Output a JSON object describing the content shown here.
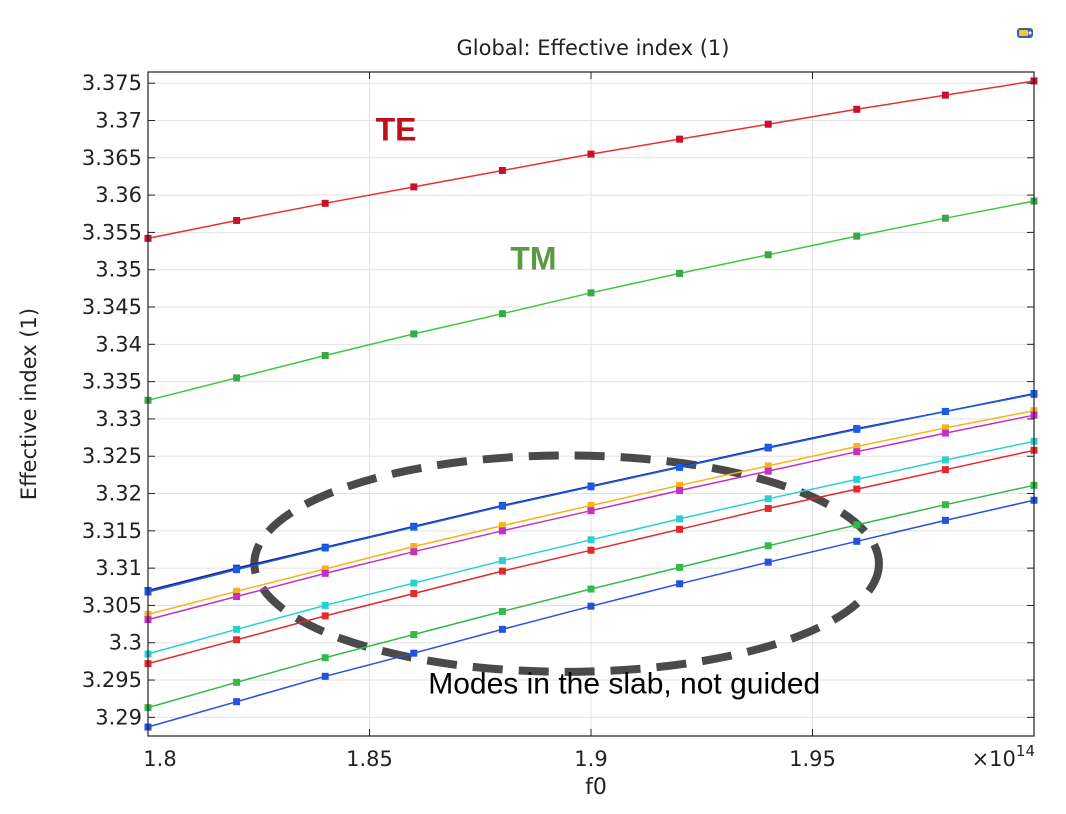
{
  "chart_data": {
    "type": "line",
    "title": "Global: Effective index (1)",
    "xlabel": "f0",
    "ylabel": "Effective index (1)",
    "x_multiplier_label": "×10",
    "x_multiplier_exp": "14",
    "xlim": [
      1.8,
      2.0
    ],
    "ylim": [
      3.2875,
      3.3765
    ],
    "x_ticks": [
      "1.8",
      "1.85",
      "1.9",
      "1.95"
    ],
    "y_ticks": [
      "3.29",
      "3.295",
      "3.3",
      "3.305",
      "3.31",
      "3.315",
      "3.32",
      "3.325",
      "3.33",
      "3.335",
      "3.34",
      "3.345",
      "3.35",
      "3.355",
      "3.36",
      "3.365",
      "3.37",
      "3.375"
    ],
    "grid": true,
    "x": [
      1.8,
      1.82,
      1.84,
      1.86,
      1.88,
      1.9,
      1.92,
      1.94,
      1.96,
      1.98,
      2.0
    ],
    "series": [
      {
        "color": "#e8312d",
        "marker_color": "#c8102e",
        "values": [
          3.3542,
          3.3566,
          3.3589,
          3.3611,
          3.3633,
          3.3655,
          3.3675,
          3.3695,
          3.3715,
          3.3734,
          3.3753
        ]
      },
      {
        "color": "#3cc93c",
        "marker_color": "#3aa84a",
        "values": [
          3.3325,
          3.3355,
          3.3385,
          3.3414,
          3.3441,
          3.3469,
          3.3495,
          3.352,
          3.3545,
          3.3569,
          3.3592
        ]
      },
      {
        "color": "#1c1c8c",
        "marker_color": "#1c3ccf",
        "values": [
          3.307,
          3.31,
          3.3128,
          3.3156,
          3.3184,
          3.321,
          3.3236,
          3.3262,
          3.3287,
          3.331,
          3.3334
        ]
      },
      {
        "color": "#1a5ce6",
        "marker_color": "#1a5ce6",
        "values": [
          3.3068,
          3.3098,
          3.3127,
          3.3155,
          3.3183,
          3.3209,
          3.3235,
          3.3261,
          3.3286,
          3.331,
          3.3333
        ]
      },
      {
        "color": "#f8b31c",
        "marker_color": "#f8b31c",
        "values": [
          3.3038,
          3.3069,
          3.3099,
          3.3129,
          3.3157,
          3.3184,
          3.3211,
          3.3237,
          3.3263,
          3.3288,
          3.3311
        ]
      },
      {
        "color": "#c430c4",
        "marker_color": "#c430c4",
        "values": [
          3.3031,
          3.3062,
          3.3093,
          3.3122,
          3.315,
          3.3177,
          3.3204,
          3.323,
          3.3256,
          3.3281,
          3.3305
        ]
      },
      {
        "color": "#2ccfcf",
        "marker_color": "#2ccfcf",
        "values": [
          3.2985,
          3.3018,
          3.305,
          3.308,
          3.311,
          3.3138,
          3.3166,
          3.3193,
          3.3219,
          3.3245,
          3.327
        ]
      },
      {
        "color": "#e12a2a",
        "marker_color": "#e12a2a",
        "values": [
          3.2972,
          3.3004,
          3.3036,
          3.3066,
          3.3096,
          3.3124,
          3.3152,
          3.318,
          3.3206,
          3.3232,
          3.3258
        ]
      },
      {
        "color": "#33b84c",
        "marker_color": "#33b84c",
        "values": [
          3.2913,
          3.2947,
          3.298,
          3.3011,
          3.3042,
          3.3072,
          3.3101,
          3.313,
          3.3158,
          3.3185,
          3.3211
        ]
      },
      {
        "color": "#2550e0",
        "marker_color": "#2550e0",
        "values": [
          3.2887,
          3.2921,
          3.2955,
          3.2986,
          3.3018,
          3.3049,
          3.3079,
          3.3108,
          3.3136,
          3.3164,
          3.3191
        ]
      }
    ],
    "annotations": [
      {
        "text": "TE",
        "color": "#c0101a",
        "x": 1.856,
        "y": 3.3673
      },
      {
        "text": "TM",
        "color": "#5a9a44",
        "x": 1.887,
        "y": 3.35
      },
      {
        "text": "Modes in the slab, not guided",
        "color": "#000000",
        "x": 1.9075,
        "y": 3.2932
      }
    ],
    "ellipse": {
      "cx": 1.8945,
      "cy": 3.3106,
      "rx": 0.0705,
      "ry_data": 0.0145,
      "color": "#4a4a4a"
    }
  },
  "icons": {
    "corner": "camera-icon"
  }
}
